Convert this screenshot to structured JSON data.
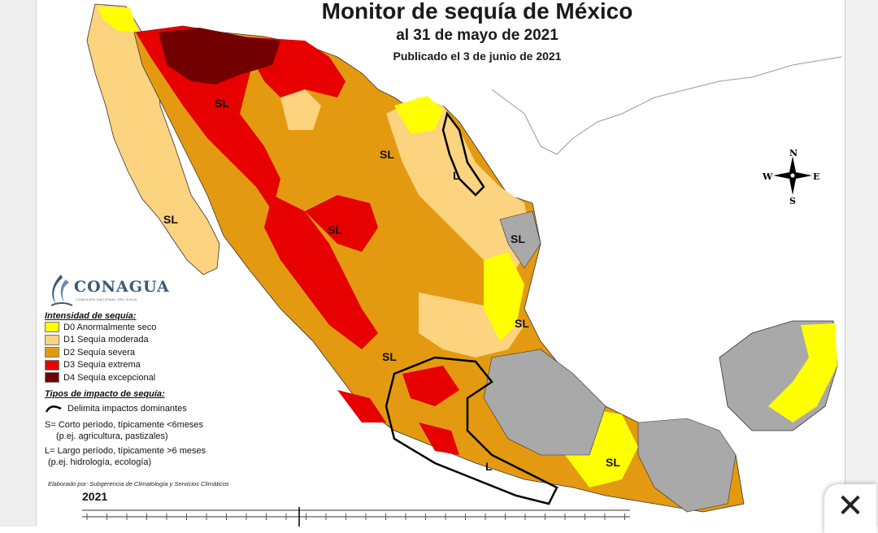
{
  "map": {
    "title": "Monitor de sequía de México",
    "subtitle": "al 31 de mayo de 2021",
    "published": "Publicado el 3 de junio de 2021",
    "compass": {
      "n": "N",
      "s": "S",
      "e": "E",
      "w": "W"
    },
    "region_labels": {
      "sl": "SL",
      "l": "L"
    }
  },
  "logo": {
    "name": "CONAGUA",
    "subtext": "COMISIÓN NACIONAL DEL AGUA"
  },
  "legend": {
    "intensity_title": "Intensidad de sequía:",
    "intensity_items": [
      {
        "label": "D0 Anormalmente seco",
        "color": "#ffff00"
      },
      {
        "label": "D1 Sequía moderada",
        "color": "#fcd37f"
      },
      {
        "label": "D2 Sequía severa",
        "color": "#e49a10"
      },
      {
        "label": "D3 Sequía extrema",
        "color": "#e60000"
      },
      {
        "label": "D4 Sequía excepcional",
        "color": "#730000"
      }
    ],
    "impact_title": "Tipos de impacto de sequía:",
    "impact_line_label": "Delimita impactos dominantes",
    "short_term": "S= Corto período, típicamente <6meses",
    "short_term_example": "(p.ej. agricultura, pastizales)",
    "long_term": "L= Largo período, típicamente >6 meses",
    "long_term_example": "(p.ej. hidrología, ecología)",
    "credit": "Elaborado por: Subgerencia de Climatología y Servicios Climáticos"
  },
  "timeline": {
    "year": "2021"
  },
  "colors": {
    "d0": "#ffff00",
    "d1": "#fcd37f",
    "d2": "#e49a10",
    "d3": "#e60000",
    "d4": "#730000",
    "no_drought": "#a9a9a9",
    "border": "#333333"
  },
  "close_button": {
    "icon": "close-icon",
    "glyph": "✕"
  }
}
